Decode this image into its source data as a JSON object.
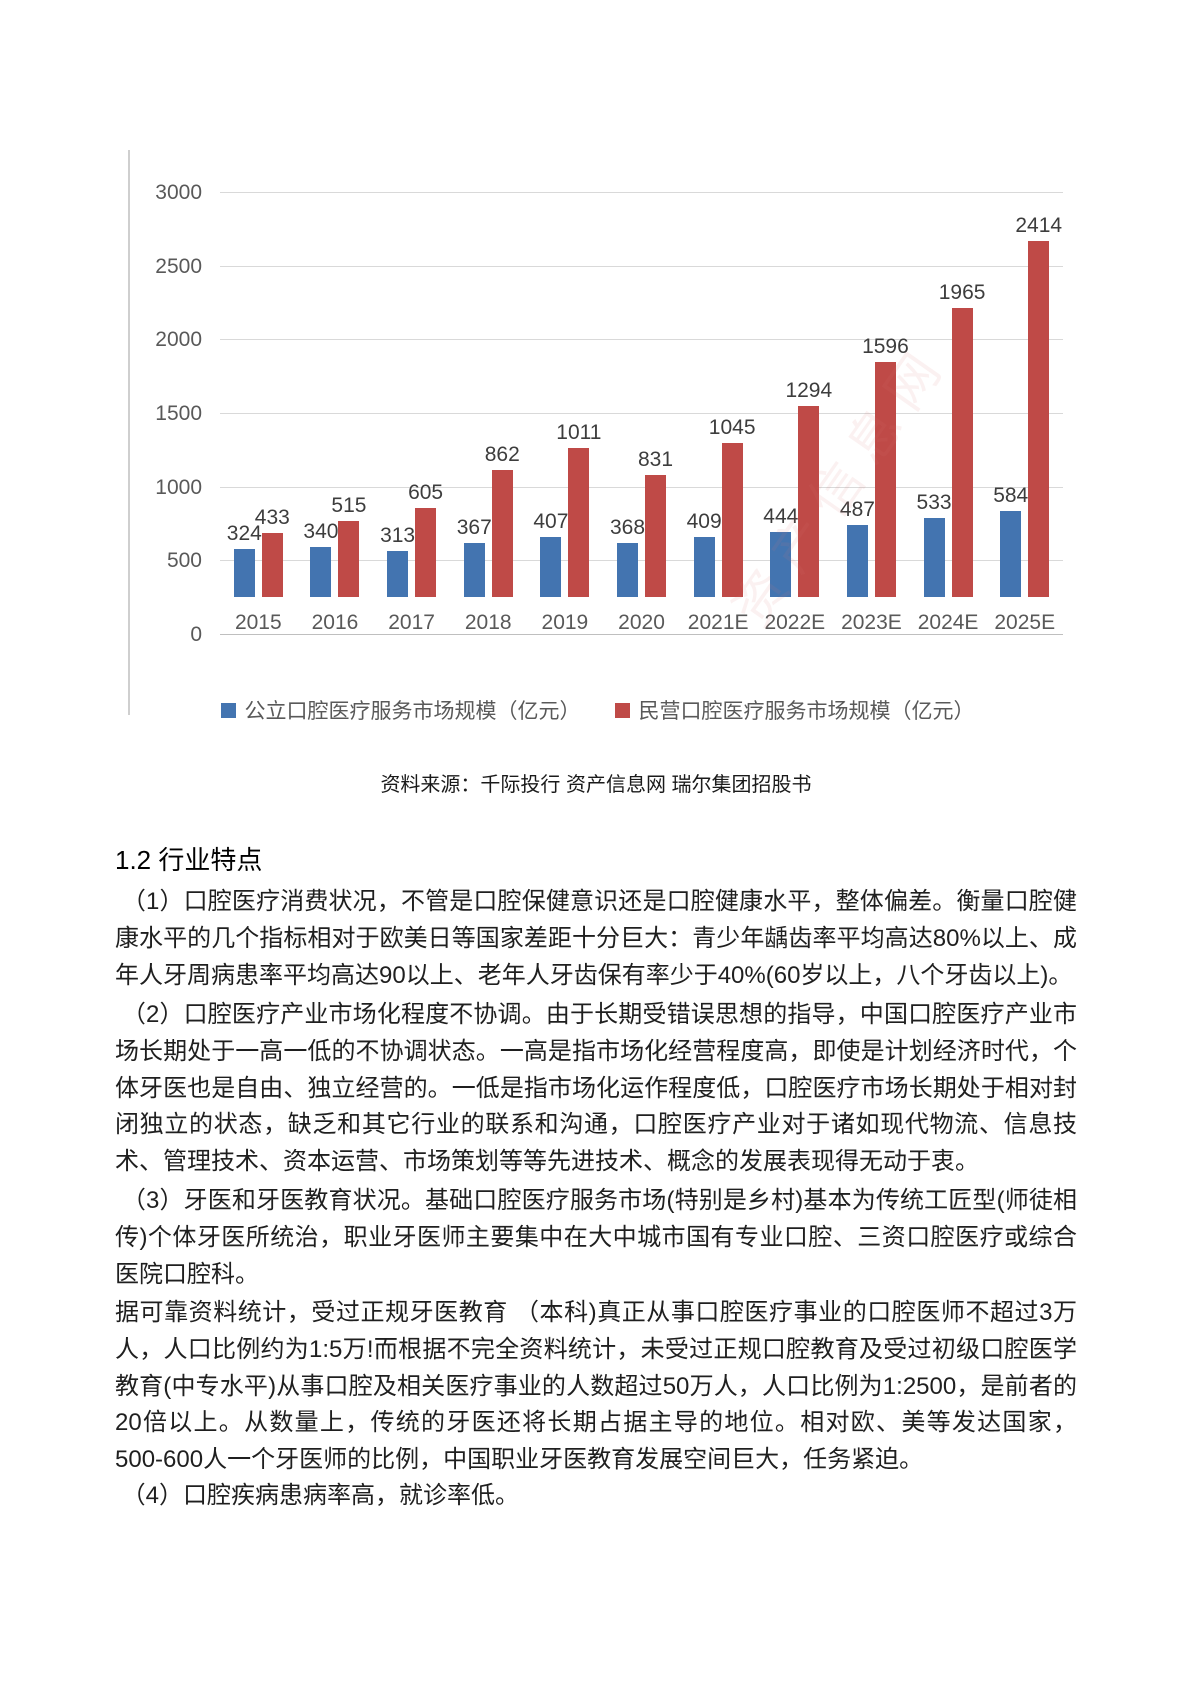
{
  "chart": {
    "source_caption": "资料来源：千际投行 资产信息网 瑞尔集团招股书",
    "watermark": "资产信息网"
  },
  "chart_data": {
    "type": "bar",
    "title": "",
    "xlabel": "",
    "ylabel": "",
    "categories": [
      "2015",
      "2016",
      "2017",
      "2018",
      "2019",
      "2020",
      "2021E",
      "2022E",
      "2023E",
      "2024E",
      "2025E"
    ],
    "series": [
      {
        "name": "公立口腔医疗服务市场规模（亿元）",
        "color": "#4374b0",
        "values": [
          324,
          340,
          313,
          367,
          407,
          368,
          409,
          444,
          487,
          533,
          584
        ]
      },
      {
        "name": "民营口腔医疗服务市场规模（亿元）",
        "color": "#bf4a47",
        "values": [
          433,
          515,
          605,
          862,
          1011,
          831,
          1045,
          1294,
          1596,
          1965,
          2414
        ]
      }
    ],
    "ylim": [
      0,
      3000
    ],
    "yticks": [
      0,
      500,
      1000,
      1500,
      2000,
      2500,
      3000
    ],
    "grid": true,
    "legend_position": "bottom",
    "data_labels": true
  },
  "section": {
    "heading": "1.2 行业特点",
    "paragraphs": [
      " （1）口腔医疗消费状况，不管是口腔保健意识还是口腔健康水平，整体偏差。衡量口腔健康水平的几个指标相对于欧美日等国家差距十分巨大：青少年龋齿率平均高达80%以上、成年人牙周病患率平均高达90以上、老年人牙齿保有率少于40%(60岁以上，八个牙齿以上)。",
      " （2）口腔医疗产业市场化程度不协调。由于长期受错误思想的指导，中国口腔医疗产业市场长期处于一高一低的不协调状态。一高是指市场化经营程度高，即使是计划经济时代，个体牙医也是自由、独立经营的。一低是指市场化运作程度低，口腔医疗市场长期处于相对封闭独立的状态，缺乏和其它行业的联系和沟通，口腔医疗产业对于诸如现代物流、信息技术、管理技术、资本运营、市场策划等等先进技术、概念的发展表现得无动于衷。",
      " （3）牙医和牙医教育状况。基础口腔医疗服务市场(特别是乡村)基本为传统工匠型(师徒相传)个体牙医所统治，职业牙医师主要集中在大中城市国有专业口腔、三资口腔医疗或综合医院口腔科。",
      "据可靠资料统计，受过正规牙医教育 （本科)真正从事口腔医疗事业的口腔医师不超过3万人，人口比例约为1:5万!而根据不完全资料统计，未受过正规口腔教育及受过初级口腔医学教育(中专水平)从事口腔及相关医疗事业的人数超过50万人，人口比例为1:2500，是前者的20倍以上。从数量上，传统的牙医还将长期占据主导的地位。相对欧、美等发达国家，500-600人一个牙医师的比例，中国职业牙医教育发展空间巨大，任务紧迫。",
      " （4）口腔疾病患病率高，就诊率低。"
    ]
  }
}
